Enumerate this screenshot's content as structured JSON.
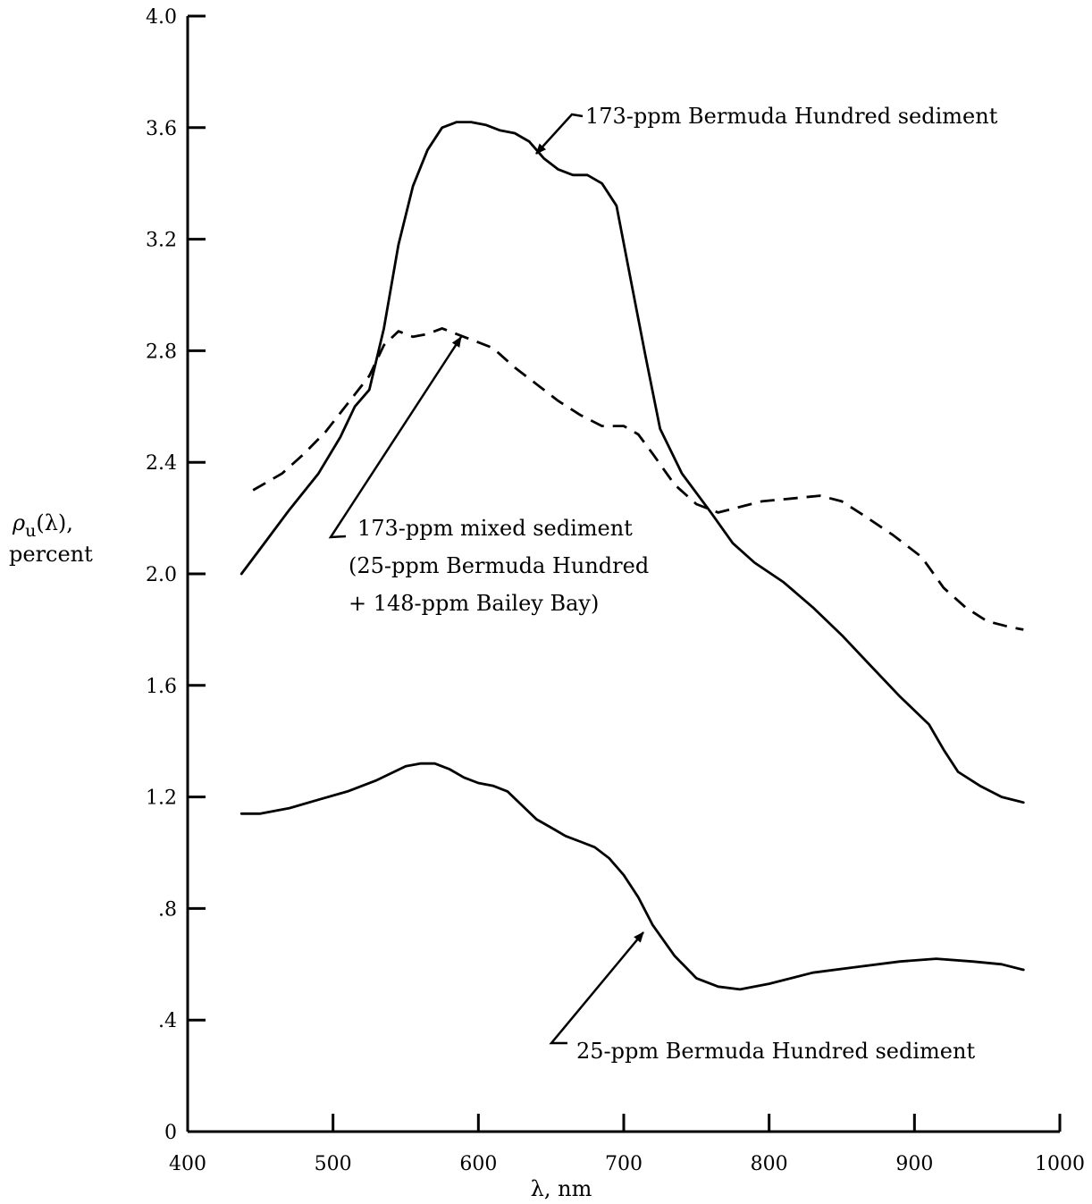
{
  "chart_data": {
    "type": "line",
    "title": "",
    "xlabel": "λ, nm",
    "ylabel": {
      "symbol": "ρ",
      "subscript": "u",
      "suffix": "(λ),",
      "line2": "percent"
    },
    "xlim": [
      400,
      1000
    ],
    "ylim": [
      0,
      4.0
    ],
    "x_ticks": [
      400,
      500,
      600,
      700,
      800,
      900,
      1000
    ],
    "x_tick_labels": [
      "400",
      "500",
      "600",
      "700",
      "800",
      "900",
      "1000"
    ],
    "y_ticks": [
      0,
      0.4,
      0.8,
      1.2,
      1.6,
      2.0,
      2.4,
      2.8,
      3.2,
      3.6,
      4.0
    ],
    "y_tick_labels": [
      "0",
      ".4",
      ".8",
      "1.2",
      "1.6",
      "2.0",
      "2.4",
      "2.8",
      "3.2",
      "3.6",
      "4.0"
    ],
    "grid": false,
    "legend": "none",
    "series": [
      {
        "style": "solid",
        "points": [
          [
            437,
            2.0
          ],
          [
            450,
            2.09
          ],
          [
            470,
            2.23
          ],
          [
            490,
            2.36
          ],
          [
            505,
            2.49
          ],
          [
            515,
            2.6
          ],
          [
            525,
            2.66
          ],
          [
            535,
            2.88
          ],
          [
            545,
            3.18
          ],
          [
            555,
            3.39
          ],
          [
            565,
            3.52
          ],
          [
            575,
            3.6
          ],
          [
            585,
            3.62
          ],
          [
            595,
            3.62
          ],
          [
            605,
            3.61
          ],
          [
            615,
            3.59
          ],
          [
            625,
            3.58
          ],
          [
            635,
            3.55
          ],
          [
            645,
            3.49
          ],
          [
            655,
            3.45
          ],
          [
            665,
            3.43
          ],
          [
            675,
            3.43
          ],
          [
            685,
            3.4
          ],
          [
            695,
            3.32
          ],
          [
            705,
            3.05
          ],
          [
            715,
            2.78
          ],
          [
            725,
            2.52
          ],
          [
            740,
            2.36
          ],
          [
            760,
            2.22
          ],
          [
            775,
            2.11
          ],
          [
            790,
            2.04
          ],
          [
            810,
            1.97
          ],
          [
            830,
            1.88
          ],
          [
            850,
            1.78
          ],
          [
            870,
            1.67
          ],
          [
            890,
            1.56
          ],
          [
            910,
            1.46
          ],
          [
            920,
            1.37
          ],
          [
            930,
            1.29
          ],
          [
            945,
            1.24
          ],
          [
            960,
            1.2
          ],
          [
            975,
            1.18
          ]
        ]
      },
      {
        "style": "dashed",
        "points": [
          [
            445,
            2.3
          ],
          [
            465,
            2.36
          ],
          [
            480,
            2.43
          ],
          [
            495,
            2.51
          ],
          [
            510,
            2.61
          ],
          [
            525,
            2.71
          ],
          [
            535,
            2.82
          ],
          [
            545,
            2.87
          ],
          [
            555,
            2.85
          ],
          [
            565,
            2.86
          ],
          [
            575,
            2.88
          ],
          [
            585,
            2.86
          ],
          [
            595,
            2.84
          ],
          [
            610,
            2.81
          ],
          [
            625,
            2.74
          ],
          [
            640,
            2.68
          ],
          [
            655,
            2.62
          ],
          [
            670,
            2.57
          ],
          [
            685,
            2.53
          ],
          [
            700,
            2.53
          ],
          [
            710,
            2.5
          ],
          [
            720,
            2.43
          ],
          [
            735,
            2.32
          ],
          [
            750,
            2.25
          ],
          [
            765,
            2.22
          ],
          [
            780,
            2.24
          ],
          [
            795,
            2.26
          ],
          [
            815,
            2.27
          ],
          [
            835,
            2.28
          ],
          [
            850,
            2.26
          ],
          [
            865,
            2.21
          ],
          [
            885,
            2.14
          ],
          [
            905,
            2.06
          ],
          [
            920,
            1.95
          ],
          [
            935,
            1.88
          ],
          [
            950,
            1.83
          ],
          [
            965,
            1.81
          ],
          [
            975,
            1.8
          ]
        ]
      },
      {
        "style": "solid",
        "points": [
          [
            437,
            1.14
          ],
          [
            450,
            1.14
          ],
          [
            470,
            1.16
          ],
          [
            490,
            1.19
          ],
          [
            510,
            1.22
          ],
          [
            530,
            1.26
          ],
          [
            550,
            1.31
          ],
          [
            560,
            1.32
          ],
          [
            570,
            1.32
          ],
          [
            580,
            1.3
          ],
          [
            590,
            1.27
          ],
          [
            600,
            1.25
          ],
          [
            610,
            1.24
          ],
          [
            620,
            1.22
          ],
          [
            630,
            1.17
          ],
          [
            640,
            1.12
          ],
          [
            650,
            1.09
          ],
          [
            660,
            1.06
          ],
          [
            670,
            1.04
          ],
          [
            680,
            1.02
          ],
          [
            690,
            0.98
          ],
          [
            700,
            0.92
          ],
          [
            710,
            0.84
          ],
          [
            720,
            0.74
          ],
          [
            735,
            0.63
          ],
          [
            750,
            0.55
          ],
          [
            765,
            0.52
          ],
          [
            780,
            0.51
          ],
          [
            800,
            0.53
          ],
          [
            830,
            0.57
          ],
          [
            860,
            0.59
          ],
          [
            890,
            0.61
          ],
          [
            915,
            0.62
          ],
          [
            940,
            0.61
          ],
          [
            960,
            0.6
          ],
          [
            975,
            0.58
          ]
        ]
      }
    ],
    "annotations": [
      {
        "lines": [
          "173-ppm Bermuda Hundred sediment"
        ]
      },
      {
        "lines": [
          "173-ppm mixed sediment",
          "(25-ppm Bermuda Hundred",
          "+ 148-ppm Bailey Bay)"
        ]
      },
      {
        "lines": [
          "25-ppm Bermuda Hundred sediment"
        ]
      }
    ]
  }
}
